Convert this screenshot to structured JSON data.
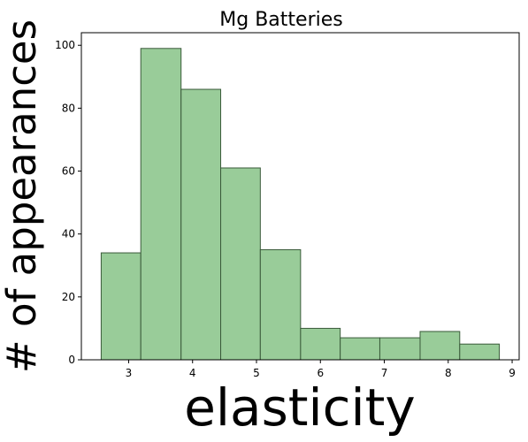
{
  "chart_data": {
    "type": "bar",
    "title": "Mg Batteries",
    "xlabel": "elasticity",
    "ylabel": "# of appearances",
    "bins": [
      {
        "x0": 2.57,
        "x1": 3.19,
        "value": 34
      },
      {
        "x0": 3.19,
        "x1": 3.82,
        "value": 99
      },
      {
        "x0": 3.82,
        "x1": 4.44,
        "value": 86
      },
      {
        "x0": 4.44,
        "x1": 5.06,
        "value": 61
      },
      {
        "x0": 5.06,
        "x1": 5.69,
        "value": 35
      },
      {
        "x0": 5.69,
        "x1": 6.31,
        "value": 10
      },
      {
        "x0": 6.31,
        "x1": 6.93,
        "value": 7
      },
      {
        "x0": 6.93,
        "x1": 7.56,
        "value": 7
      },
      {
        "x0": 7.56,
        "x1": 8.18,
        "value": 9
      },
      {
        "x0": 8.18,
        "x1": 8.8,
        "value": 5
      }
    ],
    "xlim": [
      2.26,
      9.11
    ],
    "ylim": [
      0,
      104
    ],
    "xticks": [
      "3",
      "4",
      "5",
      "6",
      "7",
      "8",
      "9"
    ],
    "yticks": [
      "0",
      "20",
      "40",
      "60",
      "80",
      "100"
    ],
    "grid": false,
    "bar_color": "#99cc99",
    "edge_color": "#3a5a3a"
  }
}
